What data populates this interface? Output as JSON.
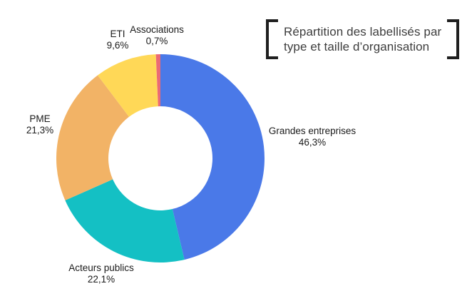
{
  "title": {
    "line1": "Répartition des labellisés par",
    "line2": "type et taille d’organisation"
  },
  "chart_data": {
    "type": "pie",
    "subtype": "donut",
    "title": "Répartition des labellisés par type et taille d’organisation",
    "start_angle_deg": 0,
    "direction": "clockwise",
    "inner_radius_ratio": 0.5,
    "legend_position": "none",
    "labels_position": "outside",
    "slices": [
      {
        "label": "Grandes entreprises",
        "value": 46.3,
        "pct_label": "46,3%",
        "color": "#4a79e8"
      },
      {
        "label": "Acteurs publics",
        "value": 22.1,
        "pct_label": "22,1%",
        "color": "#14c0c4"
      },
      {
        "label": "PME",
        "value": 21.3,
        "pct_label": "21,3%",
        "color": "#f2b366"
      },
      {
        "label": "ETI",
        "value": 9.6,
        "pct_label": "9,6%",
        "color": "#ffd857"
      },
      {
        "label": "Associations",
        "value": 0.7,
        "pct_label": "0,7%",
        "color": "#eb6a75"
      }
    ]
  }
}
